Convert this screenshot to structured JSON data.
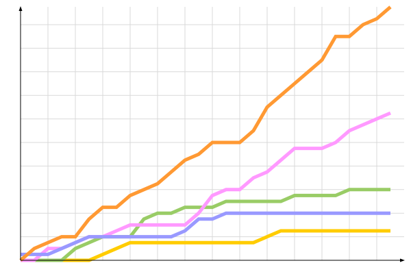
{
  "chart_data": {
    "type": "line",
    "title": "",
    "xlabel": "",
    "ylabel": "",
    "x": [
      0,
      1,
      2,
      3,
      4,
      5,
      6,
      7,
      8,
      9,
      10,
      11,
      12,
      13,
      14,
      15,
      16,
      17,
      18,
      19,
      20,
      21,
      22,
      23,
      24,
      25,
      26,
      27
    ],
    "xlim": [
      0,
      27.8
    ],
    "ylim": [
      0,
      43
    ],
    "x_grid_step": 2,
    "y_grid_step": 4,
    "grid": true,
    "legend": "none",
    "series": [
      {
        "color": "#ffcc00",
        "values": [
          0,
          0,
          0,
          0,
          0,
          0,
          1,
          2,
          3,
          3,
          3,
          3,
          3,
          3,
          3,
          3,
          3,
          3,
          4,
          5,
          5,
          5,
          5,
          5,
          5,
          5,
          5,
          5
        ]
      },
      {
        "color": "#99cc66",
        "values": [
          0,
          0,
          0,
          0,
          2,
          3,
          4,
          4,
          4,
          7,
          8,
          8,
          9,
          9,
          9,
          10,
          10,
          10,
          10,
          10,
          11,
          11,
          11,
          11,
          12,
          12,
          12,
          12
        ]
      },
      {
        "color": "#ff99ff",
        "values": [
          0,
          0,
          2,
          2,
          3,
          4,
          4,
          5,
          6,
          6,
          6,
          6,
          6,
          8,
          11,
          12,
          12,
          14,
          15,
          17,
          19,
          19,
          19,
          20,
          22,
          23,
          24,
          25
        ]
      },
      {
        "color": "#9999ff",
        "values": [
          1,
          1,
          1,
          2,
          3,
          4,
          4,
          4,
          4,
          4,
          4,
          4,
          5,
          7,
          7,
          8,
          8,
          8,
          8,
          8,
          8,
          8,
          8,
          8,
          8,
          8,
          8,
          8
        ]
      },
      {
        "color": "#ff9933",
        "values": [
          0,
          2,
          3,
          4,
          4,
          7,
          9,
          9,
          11,
          12,
          13,
          15,
          17,
          18,
          20,
          20,
          20,
          22,
          26,
          28,
          30,
          32,
          34,
          38,
          38,
          40,
          41,
          43
        ]
      }
    ]
  }
}
